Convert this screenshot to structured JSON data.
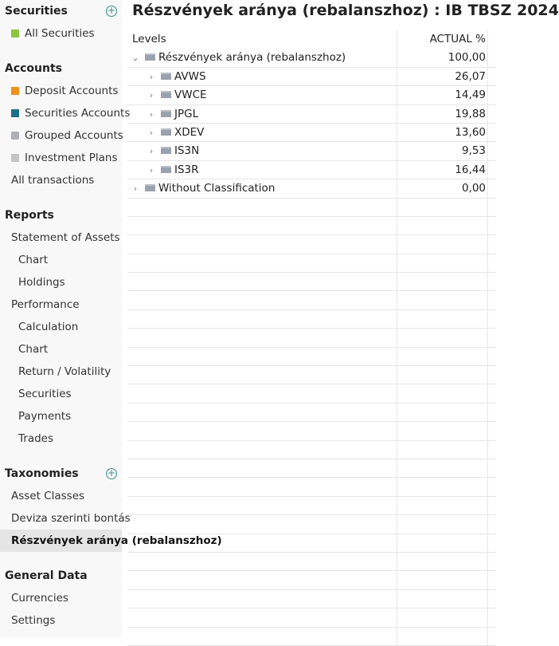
{
  "sidebar": {
    "securities": {
      "title": "Securities",
      "items": [
        {
          "label": "All Securities",
          "icon": "security-file-icon",
          "color": "#8cc63f"
        }
      ]
    },
    "accounts": {
      "title": "Accounts",
      "items": [
        {
          "label": "Deposit Accounts",
          "icon": "deposit-account-icon",
          "color": "#f0901e"
        },
        {
          "label": "Securities Accounts",
          "icon": "securities-account-icon",
          "color": "#1c6f8a"
        },
        {
          "label": "Grouped Accounts",
          "icon": "grouped-accounts-icon",
          "color": "#aab0b6"
        },
        {
          "label": "Investment Plans",
          "icon": "investment-plan-icon",
          "color": "#c4c4c4"
        },
        {
          "label": "All transactions"
        }
      ]
    },
    "reports": {
      "title": "Reports",
      "items": [
        "Statement of Assets",
        "Chart",
        "Holdings",
        "Performance",
        "Calculation",
        "Chart",
        "Return / Volatility",
        "Securities",
        "Payments",
        "Trades"
      ]
    },
    "taxonomies": {
      "title": "Taxonomies",
      "items": [
        "Asset Classes",
        "Deviza szerinti bontás",
        "Részvények aránya (rebalanszhoz)"
      ],
      "selected": 2
    },
    "general": {
      "title": "General Data",
      "items": [
        "Currencies",
        "Settings"
      ]
    }
  },
  "main": {
    "title": "Részvények aránya (rebalanszhoz) : IB TBSZ 2024",
    "columns": [
      "Levels",
      "ACTUAL %"
    ],
    "rows": [
      {
        "label": "Részvények aránya (rebalanszhoz)",
        "value": "100,00",
        "level": 0,
        "expanded": true
      },
      {
        "label": "AVWS",
        "value": "26,07",
        "level": 1
      },
      {
        "label": "VWCE",
        "value": "14,49",
        "level": 1
      },
      {
        "label": "JPGL",
        "value": "19,88",
        "level": 1
      },
      {
        "label": "XDEV",
        "value": "13,60",
        "level": 1
      },
      {
        "label": "IS3N",
        "value": "9,53",
        "level": 1
      },
      {
        "label": "IS3R",
        "value": "16,44",
        "level": 1
      },
      {
        "label": "Without Classification",
        "value": "0,00",
        "level": 0
      }
    ]
  }
}
